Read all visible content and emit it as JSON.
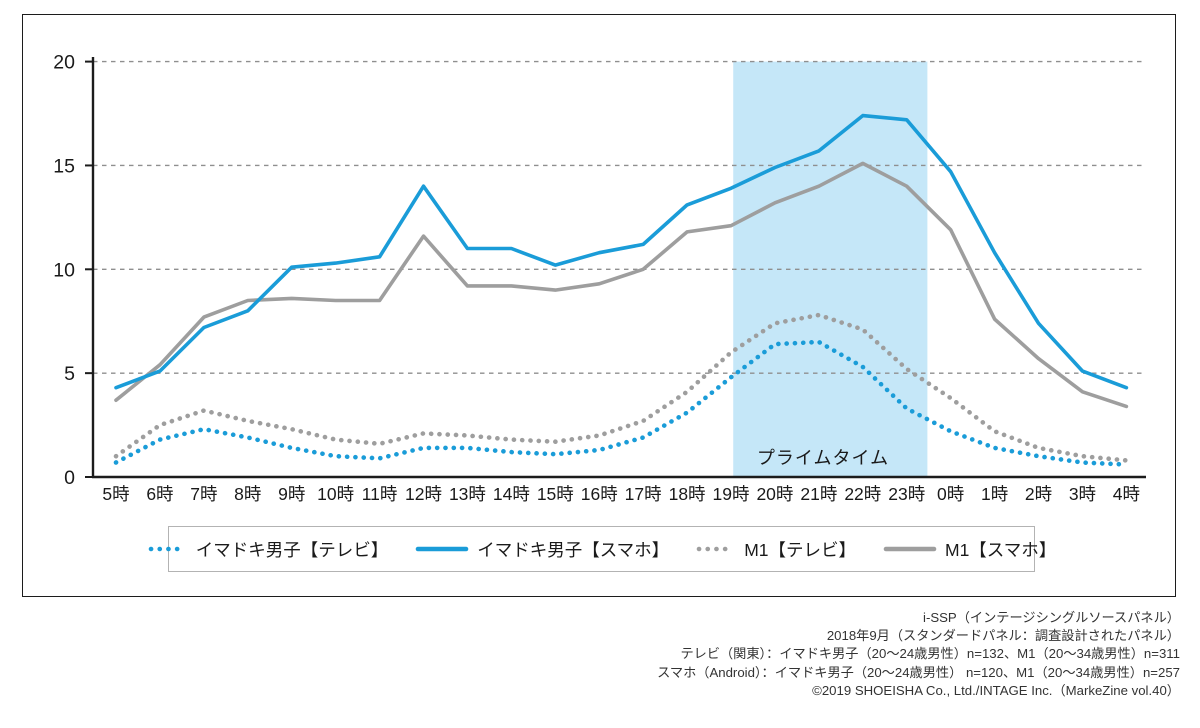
{
  "page": {
    "background": "#ffffff"
  },
  "chart_data": {
    "type": "line",
    "title": "",
    "xlabel": "",
    "ylabel": "",
    "categories": [
      "5時",
      "6時",
      "7時",
      "8時",
      "9時",
      "10時",
      "11時",
      "12時",
      "13時",
      "14時",
      "15時",
      "16時",
      "17時",
      "18時",
      "19時",
      "20時",
      "21時",
      "22時",
      "23時",
      "0時",
      "1時",
      "2時",
      "3時",
      "4時"
    ],
    "series": [
      {
        "name": "M1【テレビ】",
        "color": "#9e9e9e",
        "line_style": "dotted",
        "values": [
          1.0,
          2.5,
          3.2,
          2.7,
          2.3,
          1.8,
          1.6,
          2.1,
          2.0,
          1.8,
          1.7,
          2.0,
          2.7,
          4.1,
          6.0,
          7.4,
          7.8,
          7.1,
          5.2,
          3.8,
          2.2,
          1.4,
          1.0,
          0.8
        ]
      },
      {
        "name": "イマドキ男子【テレビ】",
        "color": "#1a9cd8",
        "line_style": "dotted",
        "values": [
          0.7,
          1.8,
          2.3,
          1.9,
          1.4,
          1.0,
          0.9,
          1.4,
          1.4,
          1.2,
          1.1,
          1.3,
          1.9,
          3.1,
          4.8,
          6.4,
          6.5,
          5.3,
          3.3,
          2.2,
          1.4,
          1.0,
          0.7,
          0.6
        ]
      },
      {
        "name": "M1【スマホ】",
        "color": "#9e9e9e",
        "line_style": "solid",
        "values": [
          3.7,
          5.4,
          7.7,
          8.5,
          8.6,
          8.5,
          8.5,
          11.6,
          9.2,
          9.2,
          9.0,
          9.3,
          10.0,
          11.8,
          12.1,
          13.2,
          14.0,
          15.1,
          14.0,
          11.9,
          7.6,
          5.7,
          4.1,
          3.4
        ]
      },
      {
        "name": "イマドキ男子【スマホ】",
        "color": "#1a9cd8",
        "line_style": "solid",
        "values": [
          4.3,
          5.1,
          7.2,
          8.0,
          10.1,
          10.3,
          10.6,
          14.0,
          11.0,
          11.0,
          10.2,
          10.8,
          11.2,
          13.1,
          13.9,
          14.9,
          15.7,
          17.4,
          17.2,
          14.7,
          10.8,
          7.4,
          5.1,
          4.3
        ]
      }
    ],
    "legend_order": [
      "イマドキ男子【テレビ】",
      "イマドキ男子【スマホ】",
      "M1【テレビ】",
      "M1【スマホ】"
    ],
    "ylim": [
      0,
      20
    ],
    "yticks": [
      0,
      5,
      10,
      15,
      20
    ],
    "grid": "dashed-horizontal",
    "legend_position": "bottom",
    "highlight_region": {
      "label": "プライムタイム",
      "from": "19時",
      "to": "0時",
      "color": "#c5e7f8"
    }
  },
  "colors": {
    "accent_blue": "#1a9cd8",
    "gray": "#9e9e9e",
    "grid": "#8f8f8f",
    "axis": "#1c1c1c",
    "highlight": "#c5e7f8",
    "legend_border": "#b3b3b3"
  },
  "footer": {
    "lines": [
      "i-SSP（インテージシングルソースパネル）",
      "2018年9月（スタンダードパネル：調査設計されたパネル）",
      "テレビ（関東）：イマドキ男子（20～24歳男性）n=132、M1（20～34歳男性）n=311",
      "スマホ（Android）：イマドキ男子（20～24歳男性） n=120、M1（20～34歳男性）n=257",
      "©2019 SHOEISHA Co., Ltd./INTAGE Inc.（MarkeZine vol.40）"
    ]
  }
}
